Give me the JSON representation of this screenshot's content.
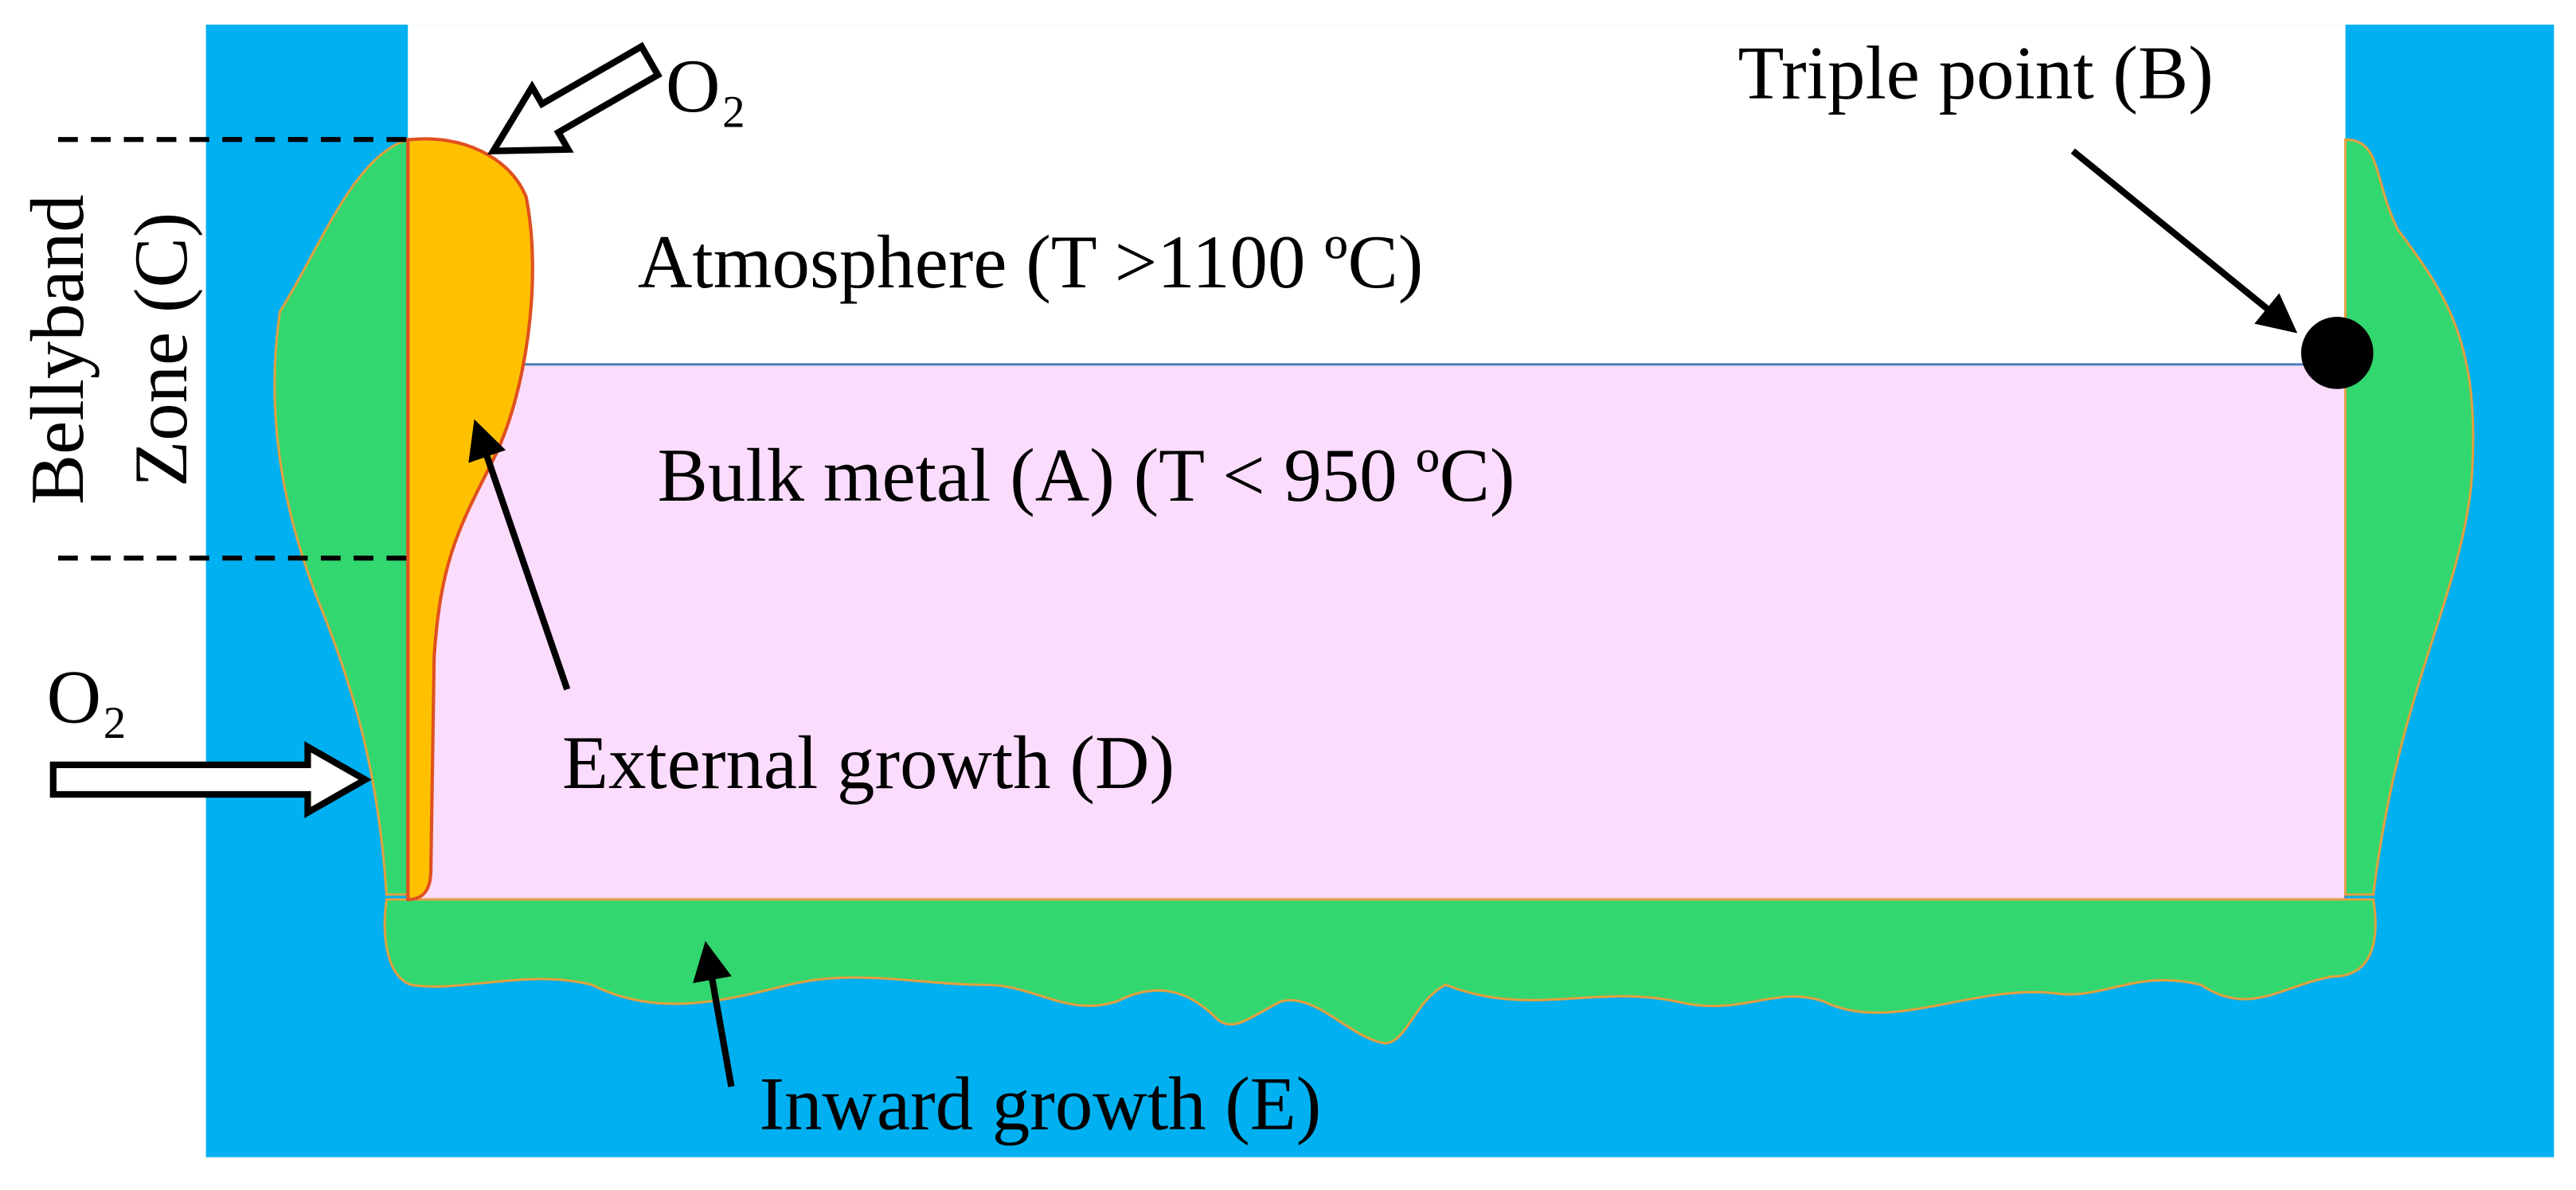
{
  "labels": {
    "oxygen_top": "O₂",
    "oxygen_side": "O₂",
    "triple_point": "Triple point (B)",
    "atmosphere": "Atmosphere (T >1100 ºC)",
    "bulk_metal": "Bulk metal (A) (T < 950 ºC)",
    "external_growth": "External growth (D)",
    "inward_growth": "Inward growth (E)",
    "bellyband_line1": "Bellyband",
    "bellyband_line2": "Zone (C)"
  }
}
